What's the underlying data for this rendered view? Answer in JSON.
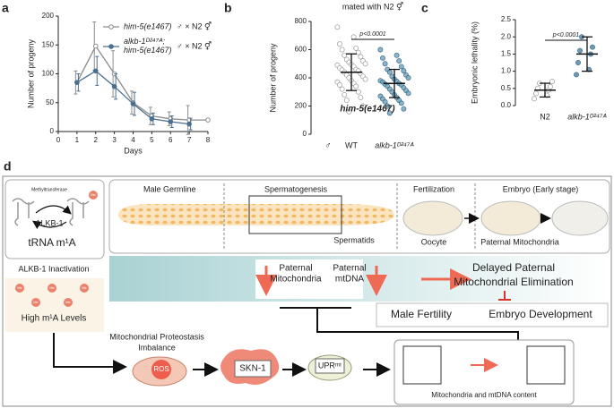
{
  "chart_data": [
    {
      "type": "line",
      "panel_label": "a",
      "xlabel": "Days",
      "ylabel": "Number of progeny",
      "xlim": [
        0,
        8
      ],
      "xticks": [
        0,
        1,
        2,
        3,
        4,
        5,
        6,
        7,
        8
      ],
      "ylim": [
        0,
        200
      ],
      "yticks": [
        0,
        50,
        100,
        150,
        200
      ],
      "legend_suffix": "♂ × N2 ⚥",
      "series": [
        {
          "name": "him-5(e1467)",
          "color": "#8c8c8c",
          "x": [
            1,
            2,
            3,
            4,
            5,
            6,
            7,
            8
          ],
          "values": [
            85,
            148,
            100,
            50,
            27,
            22,
            20,
            20
          ],
          "errors": [
            20,
            42,
            40,
            20,
            15,
            12,
            25,
            null
          ]
        },
        {
          "name": "alkb-1ᴰ²⁴⁷ᴬ; him-5(e1467)",
          "color": "#4a6f8f",
          "x": [
            1,
            2,
            3,
            4,
            5,
            6,
            7
          ],
          "values": [
            85,
            105,
            78,
            48,
            22,
            17,
            13
          ],
          "errors": [
            15,
            25,
            22,
            20,
            10,
            10,
            10
          ]
        }
      ]
    },
    {
      "type": "strip",
      "panel_label": "b",
      "title": "mated with N2 ⚥",
      "ylabel": "Number of progeny",
      "ylim": [
        0,
        800
      ],
      "yticks": [
        0,
        200,
        400,
        600,
        800
      ],
      "categories": [
        "WT",
        "alkb-1ᴰ²⁴⁷ᴬ"
      ],
      "annotations": {
        "p": "p<0.0001",
        "strain": "him-5(e1467)",
        "sex": "♂"
      },
      "groups": [
        {
          "color": "#9a9a9a",
          "filled": false,
          "values": [
            760,
            690,
            640,
            610,
            600,
            580,
            560,
            550,
            530,
            520,
            510,
            500,
            495,
            490,
            480,
            470,
            460,
            455,
            450,
            440,
            430,
            420,
            410,
            400,
            390,
            380,
            370,
            360,
            350,
            340,
            320,
            300,
            280,
            260,
            240,
            200,
            160
          ],
          "mean": 440,
          "sd": 130
        },
        {
          "color": "#6fa3bd",
          "filled": true,
          "values": [
            600,
            560,
            540,
            520,
            500,
            480,
            460,
            450,
            440,
            420,
            410,
            400,
            390,
            380,
            375,
            370,
            360,
            355,
            350,
            340,
            330,
            320,
            310,
            300,
            290,
            280,
            270,
            260,
            250,
            240,
            230,
            220,
            200,
            180,
            150
          ],
          "mean": 360,
          "sd": 100
        }
      ]
    },
    {
      "type": "strip",
      "panel_label": "c",
      "ylabel": "Embryonic lethality (%)",
      "ylim": [
        0,
        2.5
      ],
      "yticks": [
        {
          "value": 0,
          "label": "0.0"
        },
        {
          "value": 0.5,
          "label": "0.5"
        },
        {
          "value": 1,
          "label": "1.0"
        },
        {
          "value": 1.5,
          "label": "1.5"
        },
        {
          "value": 2,
          "label": "2.0"
        },
        {
          "value": 2.5,
          "label": "2.5"
        }
      ],
      "categories": [
        "N2",
        "alkb-1ᴰ²⁴⁷ᴬ"
      ],
      "annotations": {
        "p": "p<0.0001"
      },
      "groups": [
        {
          "color": "#9a9a9a",
          "filled": false,
          "values": [
            0.2,
            0.3,
            0.35,
            0.45,
            0.5,
            0.55,
            0.65,
            0.7
          ],
          "mean": 0.45,
          "sd": 0.2
        },
        {
          "color": "#4a7fa8",
          "filled": true,
          "values": [
            0.9,
            1.05,
            1.25,
            1.5,
            1.6,
            1.7,
            2.0
          ],
          "mean": 1.5,
          "sd": 0.5
        }
      ]
    }
  ],
  "diagram": {
    "label": "d",
    "trna_box": {
      "enzyme": "Methyltransferase",
      "eraser": "ALKB-1",
      "me": "Me",
      "title": "tRNA m¹A"
    },
    "inactivation": "ALKB-1 Inactivation",
    "high_level": "High m¹A Levels",
    "stages": {
      "germline": "Male Germline",
      "spermatogenesis": "Spermatogenesis",
      "spermatids": "Spermatids",
      "fertilization": "Fertilization",
      "oocyte": "Oocyte",
      "embryo": "Embryo (Early stage)",
      "paternal_mito": "Paternal Mitochondria"
    },
    "band": {
      "mito": [
        "Paternal",
        "Mitochondria"
      ],
      "mtdna": [
        "Paternal",
        "mtDNA"
      ],
      "outcome": [
        "Delayed Paternal",
        "Mitochondrial Elimination"
      ]
    },
    "phenotypes": [
      "Male Fertility",
      "Embryo Development"
    ],
    "pathway": {
      "imbalance": [
        "Mitochondrial Proteostasis",
        "Imbalance"
      ],
      "ros": "ROS",
      "skn1": "SKN-1",
      "upr": "UPRᵐᵗ",
      "content": "Mitochondria and mtDNA content"
    }
  }
}
